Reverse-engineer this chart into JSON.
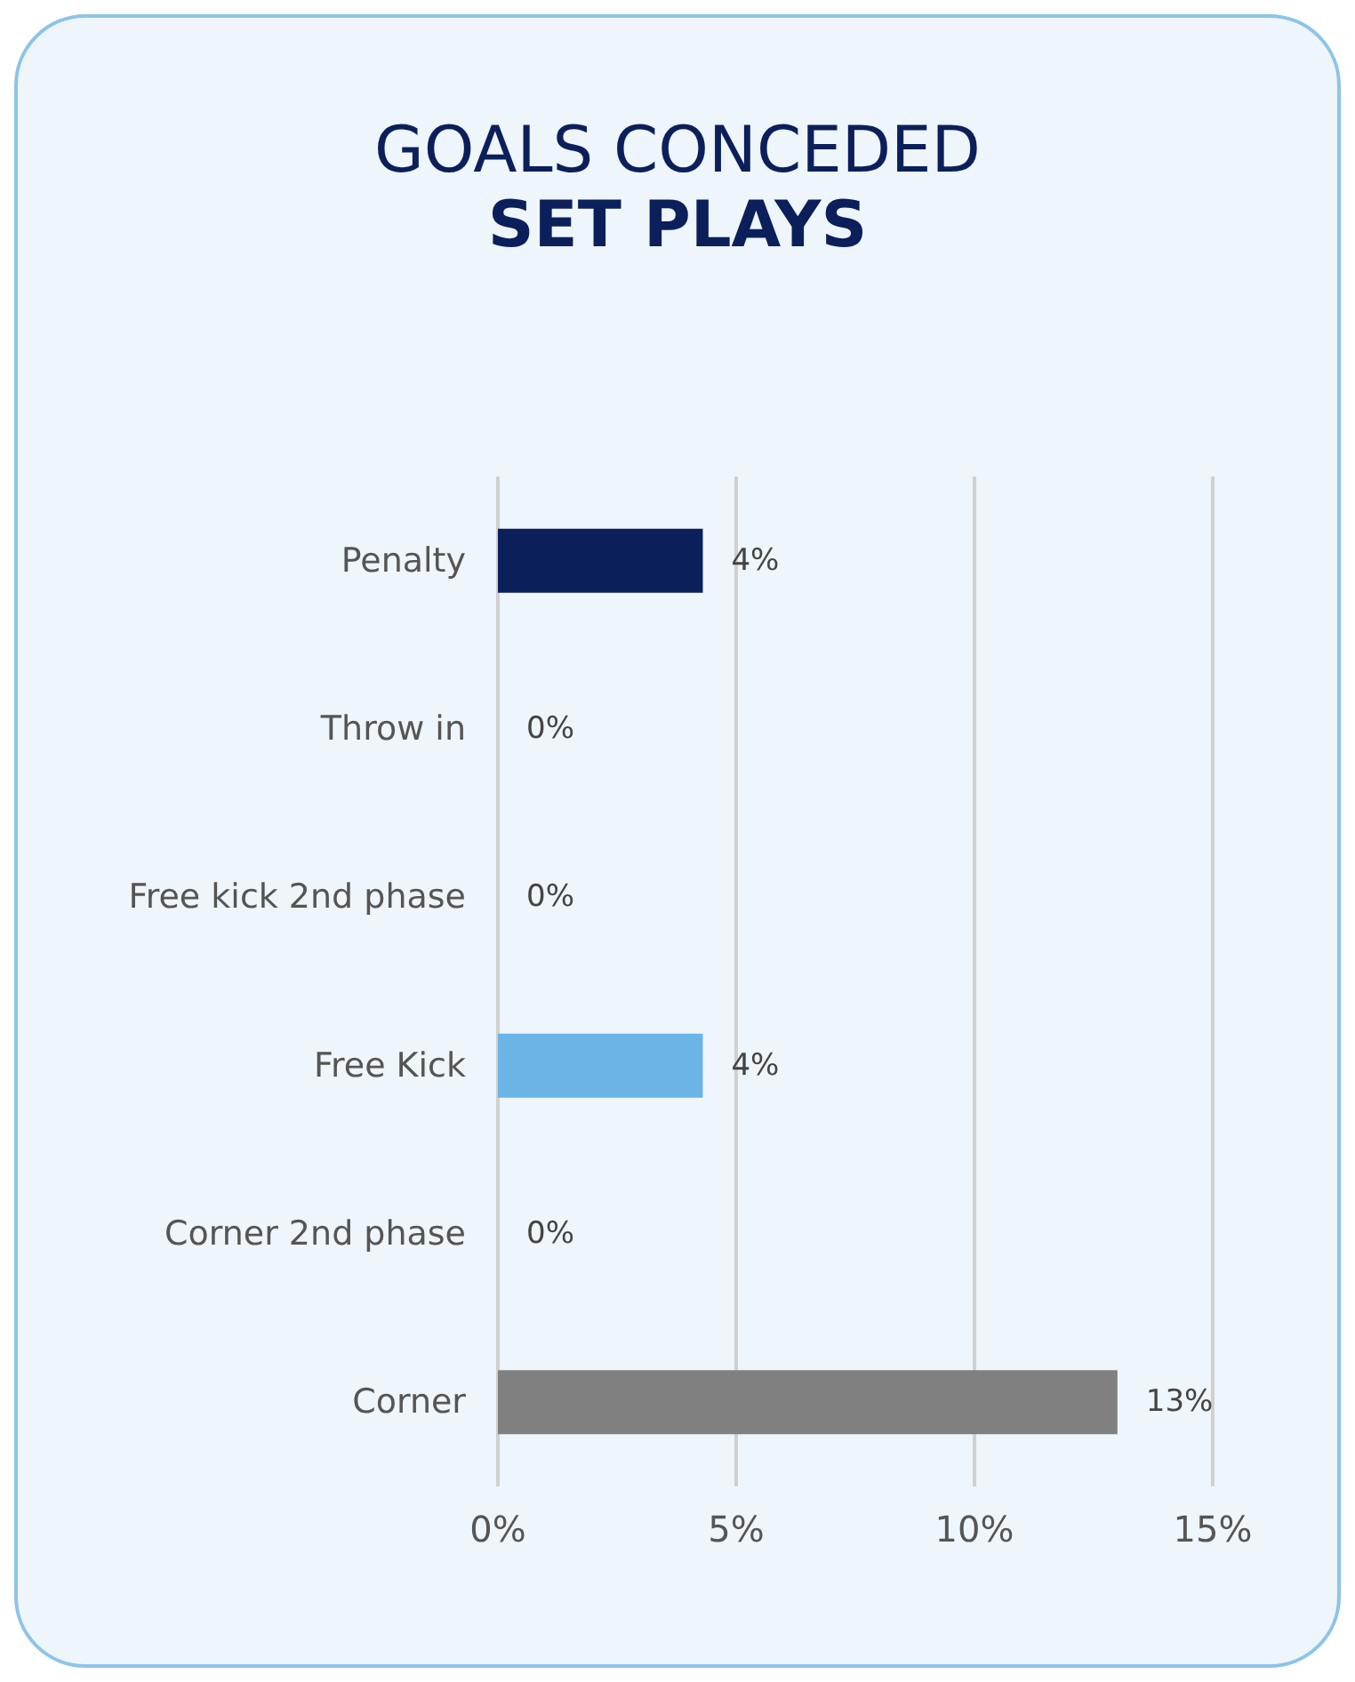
{
  "chart_data": {
    "type": "bar",
    "orientation": "horizontal",
    "title": "GOALS CONCEDED",
    "subtitle": "SET PLAYS",
    "categories": [
      "Penalty",
      "Throw in",
      "Free kick 2nd phase",
      "Free Kick",
      "Corner 2nd phase",
      "Corner"
    ],
    "values": [
      4.3,
      0,
      0,
      4.3,
      0,
      13.0
    ],
    "colors": [
      "#0b1f5b",
      "#6ab4e6",
      "#6ab4e6",
      "#6ab4e6",
      "#808080",
      "#808080"
    ],
    "value_labels": [
      "4%",
      "0%",
      "0%",
      "4%",
      "0%",
      "13%"
    ],
    "xlim": [
      0,
      15
    ],
    "xticks": [
      {
        "value": 0,
        "label": "0%"
      },
      {
        "value": 5,
        "label": "5%"
      },
      {
        "value": 10,
        "label": "10%"
      },
      {
        "value": 15,
        "label": "15%"
      }
    ],
    "grid": "x"
  }
}
